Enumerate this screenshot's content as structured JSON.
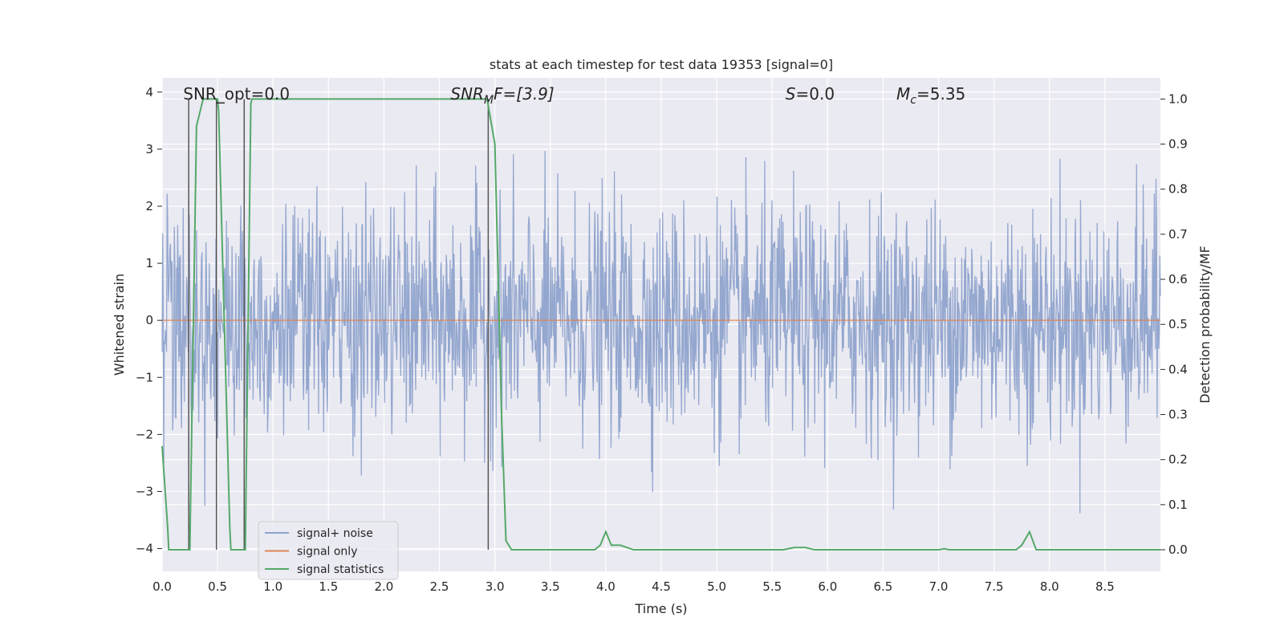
{
  "chart_data": {
    "type": "line",
    "title": "stats at each timestep for test data 19353 [signal=0]",
    "xlabel": "Time (s)",
    "ylabel": "Whitened strain",
    "ylabel_right": "Detection probability/MF",
    "xlim": [
      0.0,
      9.0
    ],
    "ylim": [
      -4.4,
      4.25
    ],
    "ylim_right": [
      -0.048,
      1.047
    ],
    "x_ticks": [
      "0.0",
      "0.5",
      "1.0",
      "1.5",
      "2.0",
      "2.5",
      "3.0",
      "3.5",
      "4.0",
      "4.5",
      "5.0",
      "5.5",
      "6.0",
      "6.5",
      "7.0",
      "7.5",
      "8.0",
      "8.5"
    ],
    "y_ticks": [
      "4",
      "3",
      "2",
      "1",
      "0",
      "−1",
      "−2",
      "−3",
      "−4"
    ],
    "y_ticks_right": [
      "1.0",
      "0.9",
      "0.8",
      "0.7",
      "0.6",
      "0.5",
      "0.4",
      "0.3",
      "0.2",
      "0.1",
      "0.0"
    ],
    "annotations": {
      "snr_opt": "SNR_opt=0.0",
      "snr_mf_var": "SNR",
      "snr_mf_sub": "M",
      "snr_mf_rest": "F=[3.9]",
      "s_var": "S",
      "s_rest": "=0.0",
      "mc_var": "M",
      "mc_sub": "c",
      "mc_rest": "=5.35"
    },
    "legend": {
      "placement": "lower-left",
      "entries": [
        "signal+ noise",
        "signal only",
        "signal statistics"
      ]
    },
    "colors": {
      "noise": "#8fa3cc",
      "signal_only": "#dd8452",
      "statistics": "#55a868",
      "vlines": "#555555",
      "background": "#eaeaf2",
      "grid": "#ffffff"
    },
    "series": [
      {
        "name": "signal+ noise",
        "description_values": "whitened strain noise, approx. Gaussian with std 1, peaks between -4.0 and 3.9",
        "noise_std": 1.0,
        "sample_count": 1800
      },
      {
        "name": "signal only",
        "x": [
          0.0,
          9.0
        ],
        "y": [
          0.0,
          0.0
        ]
      },
      {
        "name": "signal statistics",
        "x": [
          0.0,
          0.05,
          0.06,
          0.24,
          0.25,
          0.31,
          0.37,
          0.39,
          0.49,
          0.5,
          0.51,
          0.61,
          0.62,
          0.71,
          0.75,
          0.8,
          0.81,
          2.93,
          3.0,
          3.06,
          3.1,
          3.15,
          3.5,
          3.9,
          3.95,
          4.0,
          4.05,
          4.13,
          4.25,
          5.0,
          5.6,
          5.7,
          5.8,
          5.88,
          6.5,
          7.0,
          7.05,
          7.1,
          7.7,
          7.75,
          7.82,
          7.88,
          8.5,
          9.0
        ],
        "y": [
          0.23,
          0.05,
          0.0,
          0.0,
          0.0,
          0.94,
          1.0,
          1.0,
          1.0,
          1.0,
          0.97,
          0.05,
          0.0,
          0.0,
          0.0,
          0.99,
          1.0,
          1.0,
          0.9,
          0.3,
          0.02,
          0.0,
          0.0,
          0.0,
          0.01,
          0.04,
          0.01,
          0.01,
          0.0,
          0.0,
          0.0,
          0.005,
          0.005,
          0.0,
          0.0,
          0.0,
          0.002,
          0.0,
          0.0,
          0.01,
          0.04,
          0.0,
          0.0,
          0.0
        ]
      }
    ],
    "vertical_lines": [
      0.24,
      0.49,
      0.74,
      2.94
    ]
  }
}
